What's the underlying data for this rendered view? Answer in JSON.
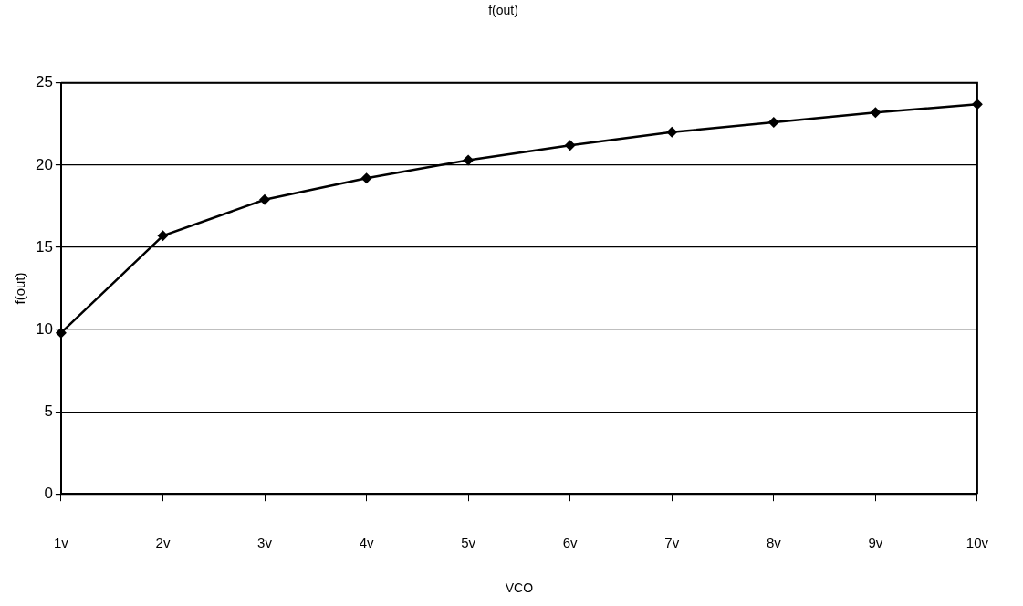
{
  "chart_data": {
    "type": "line",
    "title": "f(out)",
    "xlabel": "VCO",
    "ylabel": "f(out)",
    "categories": [
      "1v",
      "2v",
      "3v",
      "4v",
      "5v",
      "6v",
      "7v",
      "8v",
      "9v",
      "10v"
    ],
    "series": [
      {
        "color": "#000000",
        "values": [
          9.8,
          15.7,
          17.9,
          19.2,
          20.3,
          21.2,
          22.0,
          22.6,
          23.2,
          23.7
        ]
      }
    ],
    "ylim": [
      0,
      25
    ],
    "yticks": [
      0,
      5,
      10,
      15,
      20,
      25
    ],
    "grid": "y",
    "legend": false,
    "marker": "diamond",
    "line_style": "solid"
  }
}
